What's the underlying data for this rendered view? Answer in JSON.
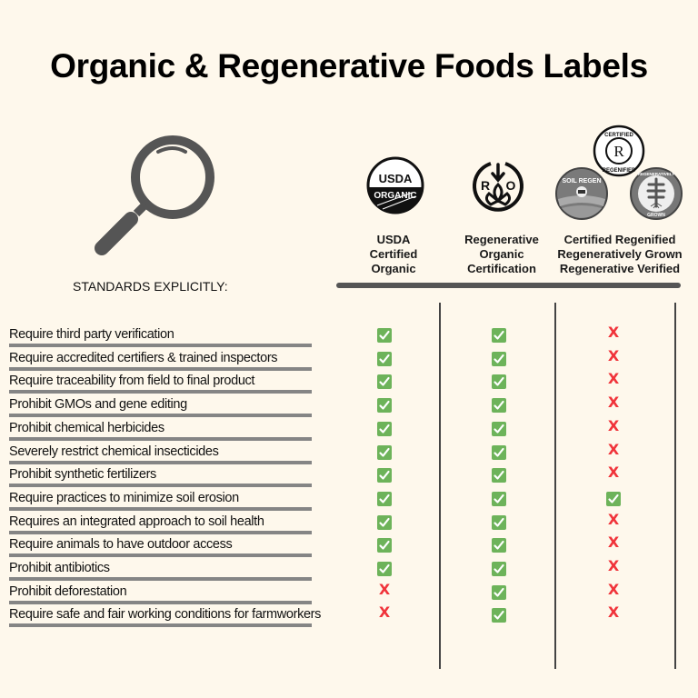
{
  "title": "Organic & Regenerative Foods Labels",
  "standards_label": "STANDARDS EXPLICITLY:",
  "icons": {
    "magnifier": "magnifying-glass-icon",
    "check": "green-check-icon",
    "cross": "red-x-icon"
  },
  "colors": {
    "background": "#fef8ec",
    "check_green": "#6db35a",
    "cross_red": "#f0333a",
    "divider_gray": "#858585",
    "bar_dark": "#555555"
  },
  "columns": [
    {
      "label_lines": [
        "USDA",
        "Certified",
        "Organic"
      ],
      "logos": [
        "USDA ORGANIC"
      ]
    },
    {
      "label_lines": [
        "Regenerative",
        "Organic",
        "Certification"
      ],
      "logos": [
        "R O"
      ]
    },
    {
      "label_lines": [
        "Certified Regenified",
        "Regeneratively Grown",
        "Regenerative Verified"
      ],
      "logos": [
        "CERTIFIED REGENIFIED",
        "SOIL REGEN",
        "REGENERATIVELY GROWN"
      ]
    }
  ],
  "logo_text": {
    "usda_top": "USDA",
    "usda_bottom": "ORGANIC",
    "ro_left": "R",
    "ro_right": "O",
    "regenified_top": "CERTIFIED",
    "regenified_center": "R",
    "regenified_bottom": "REGENIFIED",
    "soil_regen": "SOIL REGEN",
    "regen_grown_top": "REGENERATIVELY",
    "regen_grown_bottom": "GROWN"
  },
  "rows": [
    {
      "label": "Require third party verification",
      "values": [
        "check",
        "check",
        "x"
      ]
    },
    {
      "label": "Require accredited certifiers & trained inspectors",
      "values": [
        "check",
        "check",
        "x"
      ]
    },
    {
      "label": "Require traceability from field to final product",
      "values": [
        "check",
        "check",
        "x"
      ]
    },
    {
      "label": "Prohibit GMOs and gene editing",
      "values": [
        "check",
        "check",
        "x"
      ]
    },
    {
      "label": "Prohibit chemical herbicides",
      "values": [
        "check",
        "check",
        "x"
      ]
    },
    {
      "label": "Severely restrict chemical insecticides",
      "values": [
        "check",
        "check",
        "x"
      ]
    },
    {
      "label": "Prohibit synthetic fertilizers",
      "values": [
        "check",
        "check",
        "x"
      ]
    },
    {
      "label": "Require practices to minimize soil erosion",
      "values": [
        "check",
        "check",
        "check"
      ]
    },
    {
      "label": "Requires an integrated approach to soil health",
      "values": [
        "check",
        "check",
        "x"
      ]
    },
    {
      "label": "Require animals to have outdoor access",
      "values": [
        "check",
        "check",
        "x"
      ]
    },
    {
      "label": "Prohibit antibiotics",
      "values": [
        "check",
        "check",
        "x"
      ]
    },
    {
      "label": "Prohibit deforestation",
      "values": [
        "x",
        "check",
        "x"
      ]
    },
    {
      "label": "Require safe and fair working conditions for farmworkers",
      "values": [
        "x",
        "check",
        "x"
      ]
    }
  ],
  "x_glyph": "X"
}
